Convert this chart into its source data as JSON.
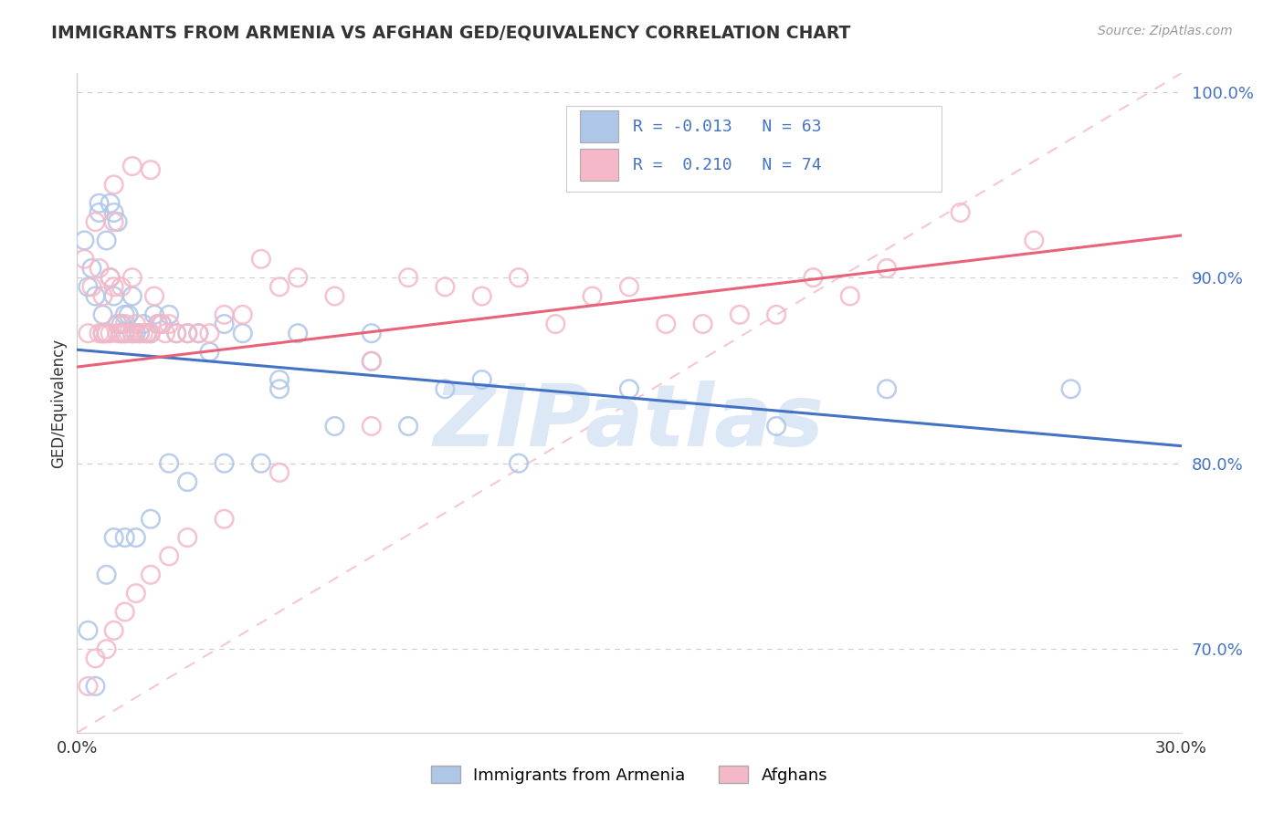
{
  "title": "IMMIGRANTS FROM ARMENIA VS AFGHAN GED/EQUIVALENCY CORRELATION CHART",
  "source": "Source: ZipAtlas.com",
  "ylabel": "GED/Equivalency",
  "xmin": 0.0,
  "xmax": 0.3,
  "ymin": 0.655,
  "ymax": 1.01,
  "yticks": [
    0.7,
    0.8,
    0.9,
    1.0
  ],
  "ytick_labels": [
    "70.0%",
    "80.0%",
    "90.0%",
    "100.0%"
  ],
  "xticks": [
    0.0,
    0.3
  ],
  "xtick_labels": [
    "0.0%",
    "30.0%"
  ],
  "legend_R1": "-0.013",
  "legend_N1": "63",
  "legend_R2": "0.210",
  "legend_N2": "74",
  "color_armenia": "#aec6e8",
  "color_afghan": "#f4b8c8",
  "trend_armenia_color": "#4472c4",
  "trend_afghan_color": "#e8637a",
  "watermark": "ZIPatlas",
  "watermark_color": "#dce8f5",
  "title_color": "#333333",
  "source_color": "#999999",
  "ytick_color": "#4472c4",
  "xtick_color": "#333333",
  "grid_color": "#cccccc",
  "spine_color": "#cccccc",
  "armenia_x": [
    0.002,
    0.003,
    0.004,
    0.005,
    0.006,
    0.006,
    0.007,
    0.007,
    0.008,
    0.008,
    0.009,
    0.009,
    0.01,
    0.01,
    0.011,
    0.011,
    0.012,
    0.012,
    0.013,
    0.013,
    0.014,
    0.015,
    0.015,
    0.016,
    0.017,
    0.018,
    0.019,
    0.02,
    0.021,
    0.022,
    0.023,
    0.025,
    0.027,
    0.03,
    0.033,
    0.036,
    0.04,
    0.045,
    0.05,
    0.055,
    0.06,
    0.07,
    0.08,
    0.09,
    0.1,
    0.11,
    0.12,
    0.15,
    0.19,
    0.22,
    0.27,
    0.003,
    0.005,
    0.008,
    0.01,
    0.013,
    0.016,
    0.02,
    0.025,
    0.03,
    0.04,
    0.055,
    0.08
  ],
  "armenia_y": [
    0.92,
    0.895,
    0.905,
    0.89,
    0.94,
    0.935,
    0.88,
    0.87,
    0.92,
    0.87,
    0.94,
    0.9,
    0.935,
    0.89,
    0.875,
    0.93,
    0.875,
    0.87,
    0.87,
    0.88,
    0.88,
    0.89,
    0.87,
    0.87,
    0.87,
    0.875,
    0.87,
    0.87,
    0.88,
    0.875,
    0.875,
    0.88,
    0.87,
    0.87,
    0.87,
    0.86,
    0.875,
    0.87,
    0.8,
    0.845,
    0.87,
    0.82,
    0.855,
    0.82,
    0.84,
    0.845,
    0.8,
    0.84,
    0.82,
    0.84,
    0.84,
    0.71,
    0.68,
    0.74,
    0.76,
    0.76,
    0.76,
    0.77,
    0.8,
    0.79,
    0.8,
    0.84,
    0.87
  ],
  "afghan_x": [
    0.002,
    0.003,
    0.004,
    0.005,
    0.006,
    0.006,
    0.007,
    0.007,
    0.008,
    0.009,
    0.009,
    0.01,
    0.01,
    0.011,
    0.011,
    0.012,
    0.012,
    0.013,
    0.013,
    0.014,
    0.015,
    0.015,
    0.016,
    0.017,
    0.018,
    0.019,
    0.02,
    0.021,
    0.022,
    0.023,
    0.024,
    0.025,
    0.027,
    0.03,
    0.033,
    0.036,
    0.04,
    0.045,
    0.05,
    0.055,
    0.06,
    0.07,
    0.08,
    0.09,
    0.1,
    0.11,
    0.12,
    0.13,
    0.14,
    0.15,
    0.16,
    0.17,
    0.18,
    0.19,
    0.2,
    0.21,
    0.22,
    0.24,
    0.26,
    0.003,
    0.005,
    0.008,
    0.01,
    0.013,
    0.016,
    0.02,
    0.025,
    0.03,
    0.04,
    0.055,
    0.08,
    0.01,
    0.015,
    0.02
  ],
  "afghan_y": [
    0.91,
    0.87,
    0.895,
    0.93,
    0.87,
    0.905,
    0.89,
    0.87,
    0.87,
    0.9,
    0.87,
    0.93,
    0.895,
    0.875,
    0.87,
    0.87,
    0.895,
    0.87,
    0.875,
    0.87,
    0.87,
    0.9,
    0.875,
    0.87,
    0.87,
    0.87,
    0.87,
    0.89,
    0.875,
    0.875,
    0.87,
    0.875,
    0.87,
    0.87,
    0.87,
    0.87,
    0.88,
    0.88,
    0.91,
    0.895,
    0.9,
    0.89,
    0.855,
    0.9,
    0.895,
    0.89,
    0.9,
    0.875,
    0.89,
    0.895,
    0.875,
    0.875,
    0.88,
    0.88,
    0.9,
    0.89,
    0.905,
    0.935,
    0.92,
    0.68,
    0.695,
    0.7,
    0.71,
    0.72,
    0.73,
    0.74,
    0.75,
    0.76,
    0.77,
    0.795,
    0.82,
    0.95,
    0.96,
    0.958
  ]
}
